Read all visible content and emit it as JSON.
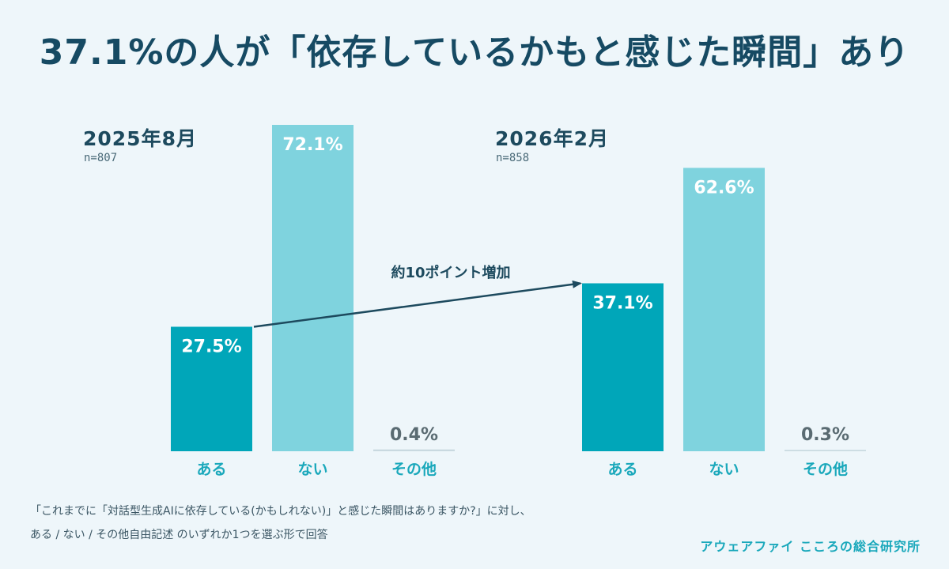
{
  "title": "37.1%の人が「依存しているかもと感じた瞬間」あり",
  "panels": [
    {
      "period": "2025年8月",
      "n": "n=807"
    },
    {
      "period": "2026年2月",
      "n": "n=858"
    }
  ],
  "annotation": "約10ポイント増加",
  "note": {
    "line1": "「これまでに「対話型生成AIに依存している(かもしれない)」と感じた瞬間はありますか?」に対し、",
    "line2": "ある / ない / その他自由記述 のいずれか1つを選ぶ形で回答"
  },
  "organization": "アウェアファイ こころの総合研究所",
  "colors": {
    "aru": "#00a6b9",
    "nai": "#7fd3de",
    "other": "#c9d9e0",
    "arrow": "#1d4a5e"
  },
  "chart_data": {
    "type": "bar",
    "categories": [
      "ある",
      "ない",
      "その他"
    ],
    "ylim": [
      0,
      80
    ],
    "groups": [
      {
        "name": "2025年8月",
        "values": [
          27.5,
          72.1,
          0.4
        ],
        "labels": [
          "27.5%",
          "72.1%",
          "0.4%"
        ]
      },
      {
        "name": "2026年2月",
        "values": [
          37.1,
          62.6,
          0.3
        ],
        "labels": [
          "37.1%",
          "62.6%",
          "0.3%"
        ]
      }
    ]
  }
}
